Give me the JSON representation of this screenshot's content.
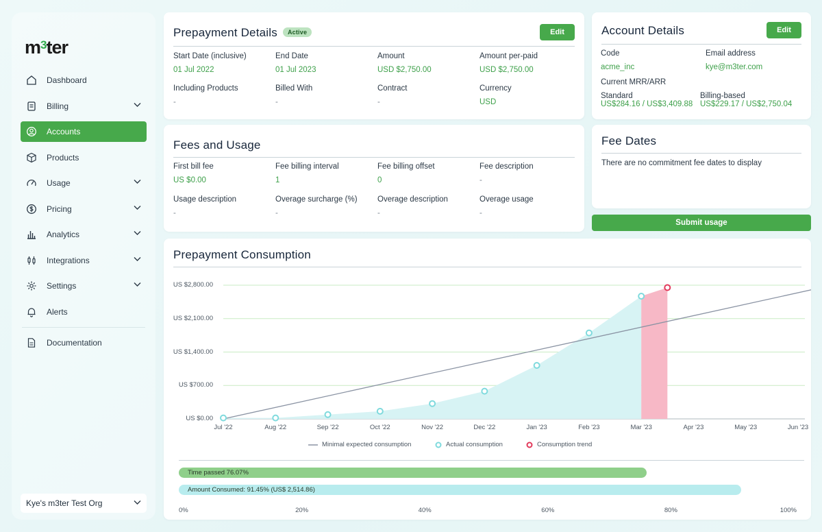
{
  "app": {
    "logo_pre": "m",
    "logo_num": "3",
    "logo_post": "ter"
  },
  "sidebar": {
    "items": [
      {
        "label": "Dashboard",
        "icon": "home-icon",
        "chevron": false,
        "active": false
      },
      {
        "label": "Billing",
        "icon": "receipt-icon",
        "chevron": true,
        "active": false
      },
      {
        "label": "Accounts",
        "icon": "user-circle-icon",
        "chevron": false,
        "active": true
      },
      {
        "label": "Products",
        "icon": "box-icon",
        "chevron": false,
        "active": false
      },
      {
        "label": "Usage",
        "icon": "gauge-icon",
        "chevron": true,
        "active": false
      },
      {
        "label": "Pricing",
        "icon": "dollar-circle-icon",
        "chevron": true,
        "active": false
      },
      {
        "label": "Analytics",
        "icon": "bar-chart-icon",
        "chevron": true,
        "active": false
      },
      {
        "label": "Integrations",
        "icon": "plug-icon",
        "chevron": true,
        "active": false
      },
      {
        "label": "Settings",
        "icon": "gear-icon",
        "chevron": true,
        "active": false
      },
      {
        "label": "Alerts",
        "icon": "bell-icon",
        "chevron": false,
        "active": false
      }
    ],
    "documentation": "Documentation",
    "org": "Kye's m3ter Test Org"
  },
  "prepayment_details": {
    "title": "Prepayment Details",
    "badge": "Active",
    "edit": "Edit",
    "fields": [
      {
        "label": "Start Date (inclusive)",
        "value": "01 Jul 2022"
      },
      {
        "label": "End Date",
        "value": "01 Jul 2023"
      },
      {
        "label": "Amount",
        "value": "USD $2,750.00"
      },
      {
        "label": "Amount per-paid",
        "value": "USD $2,750.00"
      },
      {
        "label": "Including Products",
        "value": "-"
      },
      {
        "label": "Billed With",
        "value": "-"
      },
      {
        "label": "Contract",
        "value": "-"
      },
      {
        "label": "Currency",
        "value": "USD"
      }
    ]
  },
  "fees_usage": {
    "title": "Fees and Usage",
    "fields": [
      {
        "label": "First bill fee",
        "value": "US $0.00"
      },
      {
        "label": "Fee  billing interval",
        "value": "1"
      },
      {
        "label": "Fee billing offset",
        "value": "0"
      },
      {
        "label": "Fee description",
        "value": "-"
      },
      {
        "label": "Usage description",
        "value": "-"
      },
      {
        "label": "Overage surcharge (%)",
        "value": "-"
      },
      {
        "label": "Overage description",
        "value": "-"
      },
      {
        "label": "Overage usage",
        "value": "-"
      }
    ]
  },
  "account_details": {
    "title": "Account Details",
    "edit": "Edit",
    "code_label": "Code",
    "code_value": "acme_inc",
    "email_label": "Email address",
    "email_value": "kye@m3ter.com",
    "mrr_label": "Current MRR/ARR",
    "standard_label": "Standard",
    "standard_value": "US$284.16 / US$3,409.88",
    "billing_label": "Billing-based",
    "billing_value": "US$229.17 / US$2,750.04"
  },
  "fee_dates": {
    "title": "Fee Dates",
    "empty": "There are no commitment fee dates to display"
  },
  "submit_usage": "Submit usage",
  "consumption": {
    "title": "Prepayment Consumption",
    "time_passed_label": "Time passed 76.07%",
    "amount_consumed_label": "Amount Consumed: 91.45% (US$ 2,514.86)",
    "progress_ticks": [
      "0%",
      "20%",
      "40%",
      "60%",
      "80%",
      "100%"
    ]
  },
  "colors": {
    "accent": "#47a94b",
    "value_green": "#3ea04a",
    "area": "#d7f3f4",
    "point": "#7fdadd",
    "trend": "#e23a5b",
    "trend_fill": "#f7b8c6",
    "line": "#8a93a3"
  },
  "chart_data": {
    "type": "line",
    "categories": [
      "Jul '22",
      "Aug '22",
      "Sep '22",
      "Oct '22",
      "Nov '22",
      "Dec '22",
      "Jan '23",
      "Feb '23",
      "Mar '23",
      "Apr '23",
      "May '23",
      "Jun '23"
    ],
    "y_ticks": [
      "US $0.00",
      "US $700.00",
      "US $1,400.00",
      "US $2,100.00",
      "US $2,800.00"
    ],
    "ylim": [
      0,
      2800
    ],
    "series": [
      {
        "name": "Minimal expected consumption",
        "type": "line",
        "x": [
          0,
          11.45
        ],
        "values": [
          0,
          2750
        ]
      },
      {
        "name": "Actual consumption",
        "type": "area-points",
        "x": [
          0,
          1,
          2,
          3,
          4,
          5,
          6,
          7,
          8
        ],
        "values": [
          20,
          20,
          90,
          160,
          320,
          580,
          1120,
          1800,
          2570
        ]
      },
      {
        "name": "Consumption trend",
        "type": "trend",
        "x": [
          8,
          8.5
        ],
        "values": [
          2570,
          2750
        ]
      }
    ],
    "legend_position": "bottom",
    "grid": true
  }
}
